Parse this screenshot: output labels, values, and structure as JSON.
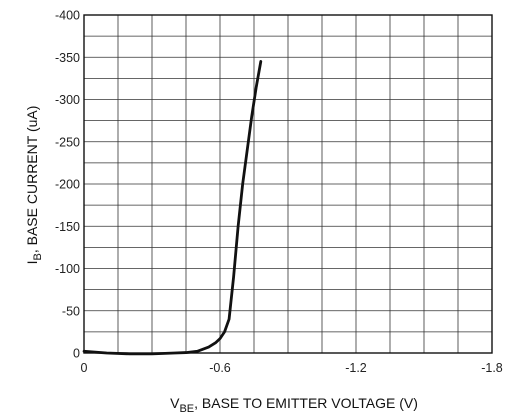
{
  "chart_data": {
    "type": "line",
    "xlabel": {
      "prefix": "V",
      "subscript": "BE",
      "rest": ", BASE TO EMITTER VOLTAGE (V)"
    },
    "ylabel": {
      "prefix": "I",
      "subscript": "B",
      "rest": ", BASE CURRENT (uA)"
    },
    "xlim": [
      0,
      -1.8
    ],
    "ylim": [
      0,
      -400
    ],
    "x_ticks": [
      {
        "value": 0,
        "label": "0"
      },
      {
        "value": -0.6,
        "label": "-0.6"
      },
      {
        "value": -1.2,
        "label": "-1.2"
      },
      {
        "value": -1.8,
        "label": "-1.8"
      }
    ],
    "y_ticks": [
      {
        "value": 0,
        "label": "0"
      },
      {
        "value": -50,
        "label": "-50"
      },
      {
        "value": -100,
        "label": "-100"
      },
      {
        "value": -150,
        "label": "-150"
      },
      {
        "value": -200,
        "label": "-200"
      },
      {
        "value": -250,
        "label": "-250"
      },
      {
        "value": -300,
        "label": "-300"
      },
      {
        "value": -350,
        "label": "-350"
      },
      {
        "value": -400,
        "label": "-400"
      }
    ],
    "grid": true,
    "grid_x_step": -0.15,
    "grid_y_step": -25,
    "line_color": "#111111",
    "series": [
      {
        "x": [
          0,
          -0.1,
          -0.2,
          -0.3,
          -0.4,
          -0.45,
          -0.5,
          -0.55,
          -0.58,
          -0.6,
          -0.62,
          -0.64,
          -0.66,
          -0.68,
          -0.7,
          -0.72,
          -0.74,
          -0.76,
          -0.78
        ],
        "y": [
          -2,
          0,
          1,
          1,
          0,
          -0.5,
          -2,
          -7,
          -12,
          -17,
          -25,
          -40,
          -90,
          -150,
          -200,
          -240,
          -280,
          -315,
          -345
        ]
      }
    ]
  }
}
